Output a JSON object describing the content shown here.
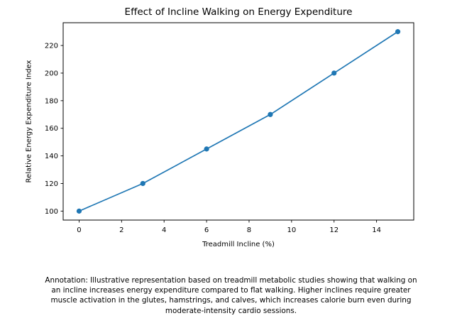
{
  "chart_data": {
    "type": "line",
    "title": "Effect of Incline Walking on Energy Expenditure",
    "xlabel": "Treadmill Incline (%)",
    "ylabel": "Relative Energy Expenditure Index",
    "x": [
      0,
      3,
      6,
      9,
      12,
      15
    ],
    "y": [
      100,
      120,
      145,
      170,
      200,
      230
    ],
    "x_ticks": [
      0,
      2,
      4,
      6,
      8,
      10,
      12,
      14
    ],
    "y_ticks": [
      100,
      120,
      140,
      160,
      180,
      200,
      220
    ],
    "xlim": [
      -0.75,
      15.75
    ],
    "ylim": [
      93.5,
      236.5
    ],
    "line_color": "#1f77b4",
    "marker": "circle",
    "grid": false,
    "legend": "none",
    "background": "#ffffff"
  },
  "annotation": {
    "lines": [
      "Annotation: Illustrative representation based on treadmill metabolic studies showing that walking on",
      "an incline increases energy expenditure compared to flat walking. Higher inclines require greater",
      "muscle activation in the glutes, hamstrings, and calves, which increases calorie burn even during",
      "moderate-intensity cardio sessions."
    ]
  }
}
